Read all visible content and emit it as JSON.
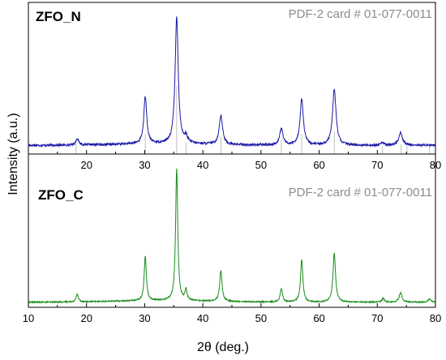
{
  "chart_data": {
    "type": "line",
    "xlabel": "2θ (deg.)",
    "ylabel": "Intensity (a.u.)",
    "xlim": [
      10,
      80
    ],
    "x_ticks": [
      10,
      20,
      30,
      40,
      50,
      60,
      70,
      80
    ],
    "top_panel_x_ticks": [
      20,
      30,
      40,
      50,
      60,
      70,
      80
    ],
    "reference_card": "PDF-2 card # 01-077-0011",
    "reference_lines": [
      {
        "x": 18.2,
        "h": 0.04
      },
      {
        "x": 30.1,
        "h": 0.12
      },
      {
        "x": 35.5,
        "h": 0.5
      },
      {
        "x": 37.1,
        "h": 0.05
      },
      {
        "x": 43.1,
        "h": 0.1
      },
      {
        "x": 53.5,
        "h": 0.08
      },
      {
        "x": 57.0,
        "h": 0.12
      },
      {
        "x": 62.6,
        "h": 0.14
      },
      {
        "x": 70.9,
        "h": 0.03
      },
      {
        "x": 74.1,
        "h": 0.04
      },
      {
        "x": 75.1,
        "h": 0.03
      },
      {
        "x": 79.0,
        "h": 0.03
      }
    ],
    "series": [
      {
        "name": "ZFO_N",
        "color": "#1a1aa6",
        "baseline": 0.03,
        "noise": 0.018,
        "peaks": [
          {
            "x": 18.4,
            "h": 0.05,
            "w": 0.3
          },
          {
            "x": 30.1,
            "h": 0.37,
            "w": 0.3
          },
          {
            "x": 35.5,
            "h": 1.0,
            "w": 0.32
          },
          {
            "x": 37.1,
            "h": 0.05,
            "w": 0.3
          },
          {
            "x": 43.1,
            "h": 0.23,
            "w": 0.34
          },
          {
            "x": 53.5,
            "h": 0.13,
            "w": 0.34
          },
          {
            "x": 57.0,
            "h": 0.36,
            "w": 0.34
          },
          {
            "x": 62.6,
            "h": 0.44,
            "w": 0.36
          },
          {
            "x": 70.9,
            "h": 0.02,
            "w": 0.3
          },
          {
            "x": 74.0,
            "h": 0.1,
            "w": 0.38
          }
        ]
      },
      {
        "name": "ZFO_C",
        "color": "#1a8c1a",
        "baseline": 0.02,
        "noise": 0.01,
        "peaks": [
          {
            "x": 18.4,
            "h": 0.06,
            "w": 0.22
          },
          {
            "x": 30.1,
            "h": 0.34,
            "w": 0.22
          },
          {
            "x": 35.5,
            "h": 1.0,
            "w": 0.22
          },
          {
            "x": 37.1,
            "h": 0.08,
            "w": 0.2
          },
          {
            "x": 43.1,
            "h": 0.23,
            "w": 0.24
          },
          {
            "x": 53.5,
            "h": 0.1,
            "w": 0.24
          },
          {
            "x": 57.0,
            "h": 0.32,
            "w": 0.24
          },
          {
            "x": 62.6,
            "h": 0.37,
            "w": 0.26
          },
          {
            "x": 71.0,
            "h": 0.03,
            "w": 0.22
          },
          {
            "x": 74.0,
            "h": 0.07,
            "w": 0.3
          },
          {
            "x": 79.0,
            "h": 0.03,
            "w": 0.22
          }
        ]
      }
    ]
  }
}
